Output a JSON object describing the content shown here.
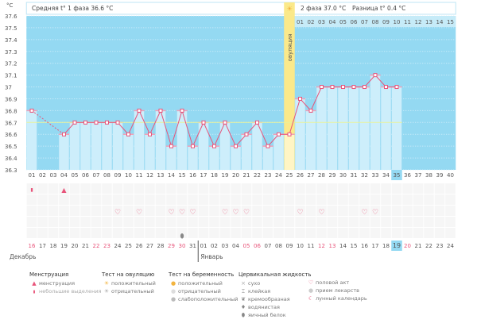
{
  "header": {
    "unit": "°C",
    "phase1": "Средняя t° 1 фаза 36.6 °C",
    "phase2": "2 фаза 37.0 °C",
    "diff": "Разница t° 0.4 °C",
    "ovulation": "овуляция"
  },
  "chart_data": {
    "type": "line",
    "ylabel": "°C",
    "ylim": [
      36.3,
      37.6
    ],
    "yticks": [
      "37.6",
      "37.5",
      "37.4",
      "37.3",
      "37.2",
      "37.1",
      "37",
      "36.9",
      "36.8",
      "36.7",
      "36.6",
      "36.5",
      "36.4",
      "36.3"
    ],
    "cycle_days": [
      "01",
      "02",
      "03",
      "04",
      "05",
      "06",
      "07",
      "08",
      "09",
      "10",
      "11",
      "12",
      "13",
      "14",
      "15",
      "16",
      "17",
      "18",
      "19",
      "20",
      "21",
      "22",
      "23",
      "24",
      "25",
      "26",
      "27",
      "28",
      "29",
      "30",
      "31",
      "32",
      "33",
      "34",
      "35",
      "36",
      "37",
      "38",
      "39",
      "40"
    ],
    "temps": [
      36.8,
      null,
      null,
      36.6,
      36.7,
      36.7,
      36.7,
      36.7,
      36.7,
      36.6,
      36.8,
      36.6,
      36.8,
      36.5,
      36.8,
      36.5,
      36.7,
      36.5,
      36.7,
      36.5,
      36.6,
      36.7,
      36.5,
      36.6,
      36.6,
      36.9,
      36.8,
      37.0,
      37.0,
      37.0,
      37.0,
      37.0,
      37.1,
      37.0,
      37.0
    ],
    "coverline": 36.7,
    "ovulation_day": 25,
    "current_day": 35,
    "phase2_days": [
      "01",
      "02",
      "03",
      "04",
      "05",
      "06",
      "07",
      "08",
      "09",
      "10",
      "11",
      "12",
      "13",
      "14",
      "15"
    ]
  },
  "calendar": {
    "dates": [
      "16",
      "17",
      "18",
      "19",
      "20",
      "21",
      "22",
      "23",
      "24",
      "25",
      "26",
      "27",
      "28",
      "29",
      "30",
      "31",
      "01",
      "02",
      "03",
      "04",
      "05",
      "06",
      "07",
      "08",
      "09",
      "10",
      "11",
      "12",
      "13",
      "14",
      "15",
      "16",
      "17",
      "18",
      "19",
      "20",
      "21",
      "22",
      "23",
      "24"
    ],
    "weekend_idx": [
      1,
      7,
      8,
      14,
      15,
      21,
      22,
      28,
      29,
      36
    ],
    "today_idx": 35,
    "months": [
      "Декабрь",
      "Январь"
    ],
    "spotting_days": [
      1
    ],
    "menstruation_days": [
      4
    ],
    "intercourse_days": [
      9,
      11,
      14,
      15,
      16,
      19,
      20,
      21,
      26,
      28,
      32,
      33
    ],
    "eggwhite_days": [
      15
    ]
  },
  "legend": {
    "menstruation": {
      "title": "Менструация",
      "items": [
        "менструация",
        "небольшие выделения"
      ]
    },
    "ovulation_test": {
      "title": "Тест на овуляцию",
      "items": [
        "положительный",
        "отрицательный"
      ]
    },
    "pregnancy_test": {
      "title": "Тест на беременность",
      "items": [
        "положительный",
        "отрицательный",
        "слабоположительный"
      ]
    },
    "cervical": {
      "title": "Цервикальная жидкость",
      "items": [
        "сухо",
        "клейкая",
        "кремообразная",
        "водянистая",
        "яичный белок"
      ]
    },
    "other": {
      "items": [
        "половой акт",
        "прием лекарств",
        "лунный календарь"
      ]
    },
    "colors": {
      "plot_bg": "#94d9f2",
      "bar": "#cdeefb",
      "line": "#e8547a",
      "ovulation": "#fbe98a",
      "coverline": "#e9f29a",
      "today": "#94d9f2"
    }
  }
}
